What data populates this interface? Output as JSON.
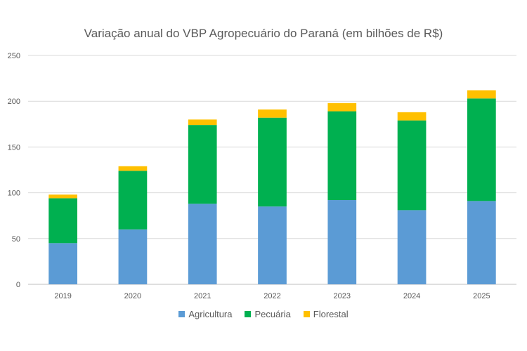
{
  "chart_data": {
    "type": "bar",
    "stacked": true,
    "title": "Variação anual do VBP Agropecuário do Paraná (em bilhões de R$)",
    "xlabel": "",
    "ylabel": "",
    "categories": [
      "2019",
      "2020",
      "2021",
      "2022",
      "2023",
      "2024",
      "2025"
    ],
    "series": [
      {
        "name": "Agricultura",
        "color": "#5B9BD5",
        "values": [
          45,
          60,
          88,
          85,
          92,
          81,
          91
        ]
      },
      {
        "name": "Pecuária",
        "color": "#00B050",
        "values": [
          49,
          64,
          86,
          97,
          97,
          98,
          112
        ]
      },
      {
        "name": "Florestal",
        "color": "#FFC000",
        "values": [
          4,
          5,
          6,
          9,
          9,
          9,
          9
        ]
      }
    ],
    "ylim": [
      0,
      250
    ],
    "yticks": [
      0,
      50,
      100,
      150,
      200,
      250
    ],
    "grid": true,
    "legend_position": "bottom"
  }
}
